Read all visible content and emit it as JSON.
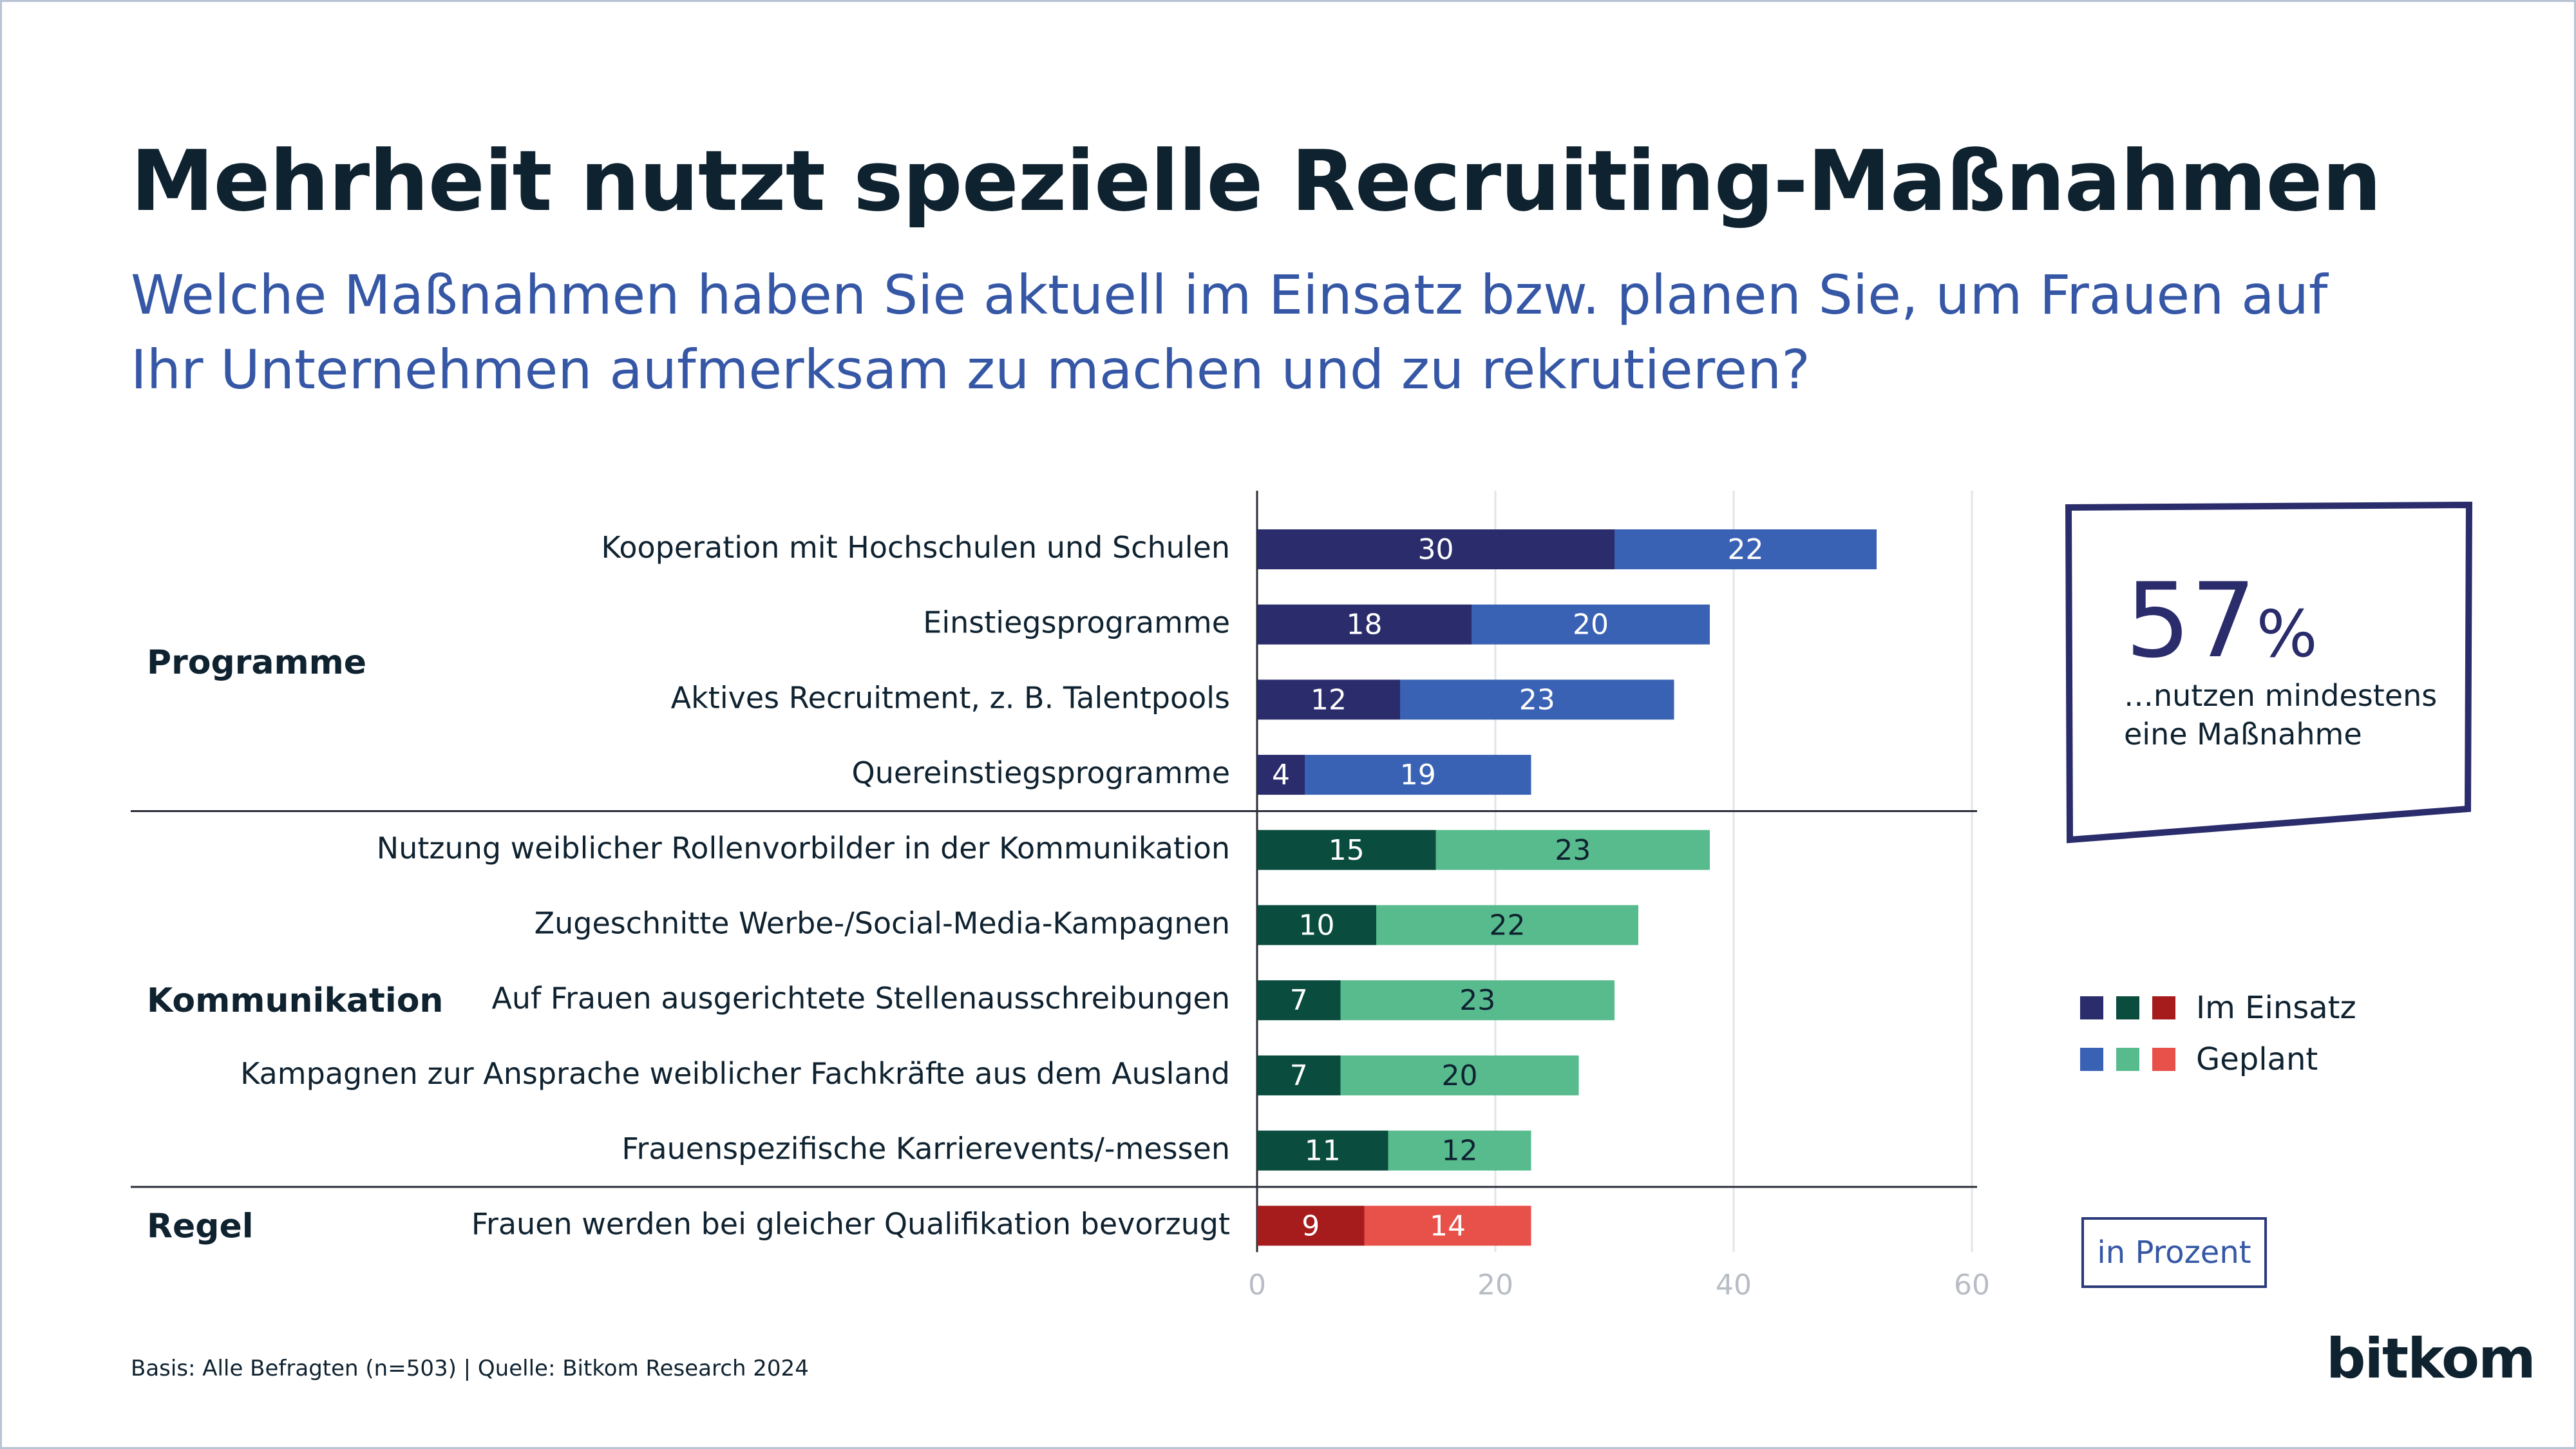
{
  "title": "Mehrheit nutzt spezielle Recruiting-Maßnahmen",
  "subtitle": "Welche Maßnahmen haben Sie aktuell im Einsatz bzw. planen Sie, um Frauen auf Ihr Unternehmen aufmerksam zu machen und zu rekrutieren?",
  "kpi": {
    "value": "57",
    "unit": "%",
    "text": "…nutzen mindestens eine Maßnahme"
  },
  "legend": [
    {
      "label": "Im Einsatz",
      "colors": [
        "#2a2c6b",
        "#0a4d3e",
        "#a61c1c"
      ]
    },
    {
      "label": "Geplant",
      "colors": [
        "#3a62b4",
        "#57bb8e",
        "#e8504a"
      ]
    }
  ],
  "unit_label": "in Prozent",
  "footnote": "Basis: Alle Befragten (n=503) | Quelle: Bitkom Research 2024",
  "logo": "bitkom",
  "chart_data": {
    "type": "bar",
    "orientation": "horizontal",
    "stacked": true,
    "xlim": [
      0,
      60
    ],
    "xticks": [
      0,
      20,
      40,
      60
    ],
    "grid": true,
    "groups": [
      {
        "name": "Programme",
        "colors": [
          "#2a2c6b",
          "#3a62b4"
        ],
        "items": [
          {
            "label": "Kooperation mit Hochschulen und Schulen",
            "values": [
              30,
              22
            ]
          },
          {
            "label": "Einstiegsprogramme",
            "values": [
              18,
              20
            ]
          },
          {
            "label": "Aktives Recruitment, z. B. Talentpools",
            "values": [
              12,
              23
            ]
          },
          {
            "label": "Quereinstiegsprogramme",
            "values": [
              4,
              19
            ]
          }
        ]
      },
      {
        "name": "Kommunikation",
        "colors": [
          "#0a4d3e",
          "#57bb8e"
        ],
        "items": [
          {
            "label": "Nutzung weiblicher Rollenvorbilder in der Kommunikation",
            "values": [
              15,
              23
            ]
          },
          {
            "label": "Zugeschnitte Werbe-/Social-Media-Kampagnen",
            "values": [
              10,
              22
            ]
          },
          {
            "label": "Auf Frauen ausgerichtete Stellenausschreibungen",
            "values": [
              7,
              23
            ]
          },
          {
            "label": "Kampagnen zur Ansprache weiblicher Fachkräfte aus dem Ausland",
            "values": [
              7,
              20
            ]
          },
          {
            "label": "Frauenspezifische Karrierevents/-messen",
            "values": [
              11,
              12
            ]
          }
        ]
      },
      {
        "name": "Regel",
        "colors": [
          "#a61c1c",
          "#e8504a"
        ],
        "items": [
          {
            "label": "Frauen werden bei gleicher Qualifikation bevorzugt",
            "values": [
              9,
              14
            ]
          }
        ]
      }
    ]
  }
}
